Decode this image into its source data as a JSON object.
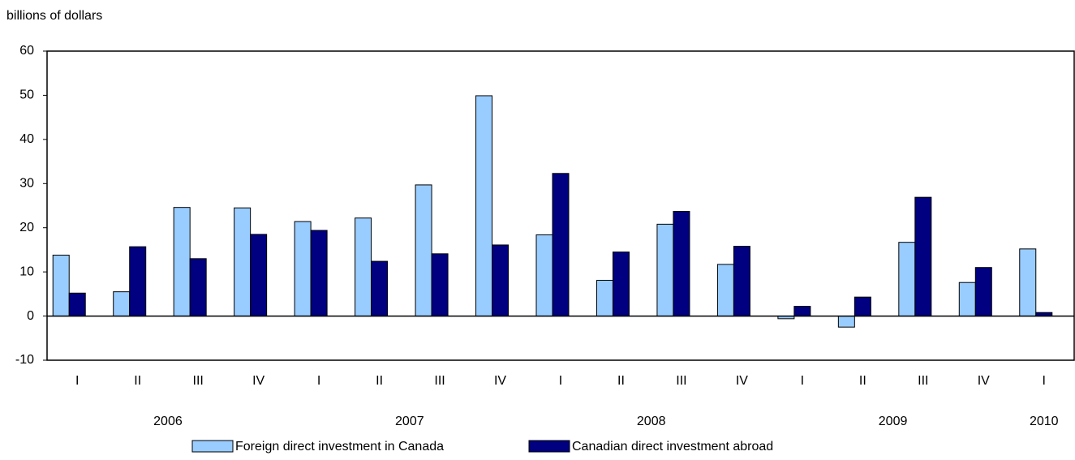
{
  "chart_data": {
    "type": "bar",
    "y_label": "billions of dollars",
    "categories": [
      "I",
      "II",
      "III",
      "IV",
      "I",
      "II",
      "III",
      "IV",
      "I",
      "II",
      "III",
      "IV",
      "I",
      "II",
      "III",
      "IV",
      "I"
    ],
    "groups": [
      {
        "name": "2006",
        "size": 4
      },
      {
        "name": "2007",
        "size": 4
      },
      {
        "name": "2008",
        "size": 4
      },
      {
        "name": "2009",
        "size": 4
      },
      {
        "name": "2010",
        "size": 1
      }
    ],
    "series": [
      {
        "name": "Foreign direct investment in Canada",
        "color": "#99ccff",
        "values": [
          13.8,
          5.5,
          24.6,
          24.5,
          21.4,
          22.2,
          29.7,
          49.9,
          18.4,
          8.1,
          20.8,
          11.7,
          -0.6,
          -2.5,
          16.7,
          7.6,
          15.2
        ]
      },
      {
        "name": "Canadian direct investment abroad",
        "color": "#000080",
        "values": [
          5.2,
          15.7,
          13.0,
          18.5,
          19.4,
          12.4,
          14.1,
          16.1,
          32.3,
          14.5,
          23.7,
          15.8,
          2.2,
          4.3,
          26.9,
          11.0,
          0.8
        ]
      }
    ],
    "ylim": [
      -10,
      60
    ],
    "yticks": [
      -10,
      0,
      10,
      20,
      30,
      40,
      50,
      60
    ],
    "grid": false,
    "legend": "bottom"
  }
}
